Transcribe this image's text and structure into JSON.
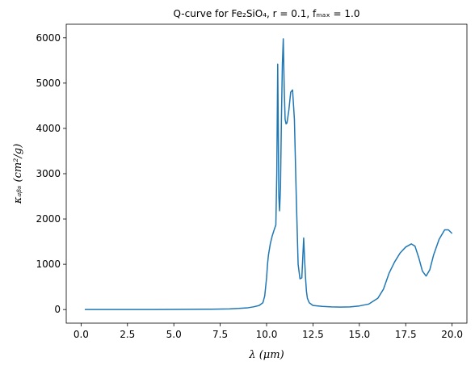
{
  "chart_data": {
    "type": "line",
    "title": "Q-curve for Fe₂SiO₄, r = 0.1, fₘₐₓ = 1.0",
    "xlabel": "λ (μm)",
    "ylabel": "κₐᵦₛ (cm²/g)",
    "xlim": [
      -0.8,
      20.8
    ],
    "ylim": [
      -300,
      6300
    ],
    "xticks": [
      0.0,
      2.5,
      5.0,
      7.5,
      10.0,
      12.5,
      15.0,
      17.5,
      20.0
    ],
    "xtick_labels": [
      "0.0",
      "2.5",
      "5.0",
      "7.5",
      "10.0",
      "12.5",
      "15.0",
      "17.5",
      "20.0"
    ],
    "yticks": [
      0,
      1000,
      2000,
      3000,
      4000,
      5000,
      6000
    ],
    "ytick_labels": [
      "0",
      "1000",
      "2000",
      "3000",
      "4000",
      "5000",
      "6000"
    ],
    "grid": false,
    "line_color": "#1f77b4",
    "series": [
      {
        "x": [
          0.2,
          2.0,
          4.0,
          6.0,
          7.0,
          8.0,
          8.5,
          9.0,
          9.3,
          9.6,
          9.8,
          9.9,
          10.0,
          10.05,
          10.1,
          10.2,
          10.3,
          10.4,
          10.5,
          10.55,
          10.6,
          10.63,
          10.66,
          10.7,
          10.75,
          10.8,
          10.85,
          10.9,
          10.95,
          11.0,
          11.05,
          11.1,
          11.2,
          11.3,
          11.4,
          11.5,
          11.6,
          11.7,
          11.8,
          11.9,
          12.0,
          12.05,
          12.1,
          12.15,
          12.2,
          12.3,
          12.5,
          13.0,
          13.5,
          14.0,
          14.5,
          15.0,
          15.5,
          16.0,
          16.3,
          16.6,
          16.9,
          17.2,
          17.5,
          17.8,
          18.0,
          18.2,
          18.4,
          18.6,
          18.8,
          19.0,
          19.3,
          19.6,
          19.8,
          20.0
        ],
        "y": [
          0,
          0,
          2,
          5,
          8,
          15,
          25,
          40,
          60,
          90,
          150,
          300,
          700,
          1000,
          1200,
          1450,
          1620,
          1750,
          1870,
          3000,
          5420,
          4000,
          2500,
          2180,
          2700,
          4200,
          5400,
          5980,
          4900,
          4200,
          4100,
          4120,
          4400,
          4800,
          4850,
          4200,
          2500,
          1000,
          680,
          700,
          1580,
          1100,
          700,
          400,
          250,
          150,
          90,
          70,
          60,
          55,
          60,
          80,
          120,
          250,
          450,
          800,
          1050,
          1250,
          1380,
          1450,
          1400,
          1150,
          850,
          740,
          880,
          1200,
          1550,
          1760,
          1760,
          1680
        ]
      }
    ]
  }
}
